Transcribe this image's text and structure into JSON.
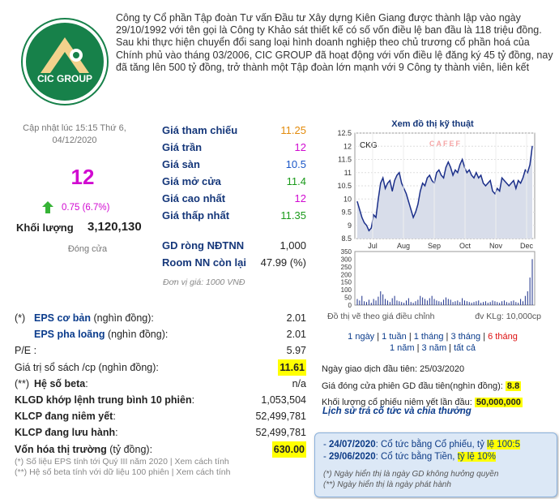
{
  "company": {
    "logo_text": "CIC GROUP",
    "description": "Công ty Cổ phần Tập đoàn Tư vấn Đầu tư Xây dựng Kiên Giang được thành lập vào ngày 29/10/1992 với tên gọi là Công ty Khảo sát thiết kế có số vốn điều lệ ban đầu là 118 triệu đồng. Sau khi thực hiện chuyển đổi sang loại hình doanh nghiệp theo chủ trương cổ phần hoá của Chính phủ vào tháng 03/2006, CIC GROUP đã hoạt động với vốn điều lệ đăng ký 45 tỷ đồng, nay đã tăng lên 500 tỷ đồng, trở thành một Tập đoàn lớn mạnh với 9 Công ty thành viên, liên kết"
  },
  "quote": {
    "updated": "Cập nhật lúc 15:15 Thứ 6, 04/12/2020",
    "price": "12",
    "change": "0.75 (6.7%)",
    "volume_label": "Khối lượng",
    "volume": "3,120,130",
    "status": "Đóng cửa"
  },
  "prices": [
    {
      "label": "Giá tham chiếu",
      "value": "11.25",
      "color": "#e38b0b"
    },
    {
      "label": "Giá trần",
      "value": "12",
      "color": "#d10ad1"
    },
    {
      "label": "Giá sàn",
      "value": "10.5",
      "color": "#1a56c7"
    },
    {
      "label": "Giá mở cửa",
      "value": "11.4",
      "color": "#1a9a1a"
    },
    {
      "label": "Giá cao nhất",
      "value": "12",
      "color": "#d10ad1"
    },
    {
      "label": "Giá thấp nhất",
      "value": "11.35",
      "color": "#1a9a1a"
    }
  ],
  "foreign": [
    {
      "label": "GD ròng NĐTNN",
      "value": "1,000"
    },
    {
      "label": "Room NN còn lại",
      "value": "47.99 (%)"
    }
  ],
  "unit_note": "Đơn vị giá: 1000 VNĐ",
  "fundamentals": [
    {
      "prefix": "(*)",
      "label": "EPS cơ bản",
      "suffix": " (nghìn đồng):",
      "value": "2.01",
      "link": true
    },
    {
      "prefix": "",
      "label": "EPS pha loãng",
      "suffix": " (nghìn đồng):",
      "value": "2.01",
      "link": true
    },
    {
      "prefix": "",
      "label": "P/E",
      "suffix": " :",
      "value": "5.97",
      "link": false
    },
    {
      "prefix": "",
      "label": "Giá trị sổ sách /cp",
      "suffix": " (nghìn đồng):",
      "value": "11.61",
      "link": false,
      "highlight": true
    },
    {
      "prefix": "(**)",
      "label": "Hệ số beta",
      "suffix": ":",
      "value": "n/a",
      "link": false,
      "bold": true
    },
    {
      "prefix": "",
      "label": "KLGD khớp lệnh trung bình 10 phiên",
      "suffix": ":",
      "value": "1,053,504",
      "link": false,
      "bold": true
    },
    {
      "prefix": "",
      "label": "KLCP đang niêm yết",
      "suffix": ":",
      "value": "52,499,781",
      "link": false,
      "bold": true
    },
    {
      "prefix": "",
      "label": "KLCP đang lưu hành",
      "suffix": ":",
      "value": "52,499,781",
      "link": false,
      "bold": true
    },
    {
      "prefix": "",
      "label": "Vốn hóa thị trường",
      "suffix": " (tỷ đồng):",
      "value": "630.00",
      "link": false,
      "bold": true,
      "highlight": true
    }
  ],
  "notes": {
    "n1": "(*) Số liệu EPS tính tới Quý III năm 2020 | Xem cách tính",
    "n2": "(**) Hệ số beta tính với dữ liệu 100 phiên | Xem cách tính"
  },
  "chart": {
    "title": "Xem đồ thị kỹ thuật",
    "ticker": "CKG",
    "watermark": "CAFEF",
    "footer_left": "Đồ thị vẽ theo giá điều chỉnh",
    "footer_right": "đv KLg: 10,000cp",
    "timeframes_row1": [
      "1 ngày",
      "1 tuần",
      "1 tháng",
      "3 tháng",
      "6 tháng"
    ],
    "timeframes_row2": [
      "1 năm",
      "3 năm",
      "tất cả"
    ],
    "active_timeframe": "6 tháng"
  },
  "chart_data": {
    "type": "line",
    "x_labels": [
      "Jul",
      "Aug",
      "Sep",
      "Oct",
      "Nov",
      "Dec"
    ],
    "y_ticks": [
      "8.5",
      "9",
      "9.5",
      "10",
      "10.5",
      "11",
      "11.5",
      "12",
      "12.5"
    ],
    "ylim": [
      8.5,
      12.5
    ],
    "values": [
      9.9,
      9.6,
      9.3,
      9.1,
      9.0,
      8.8,
      8.9,
      9.4,
      9.3,
      10.0,
      10.6,
      10.8,
      10.4,
      10.6,
      10.7,
      10.3,
      10.7,
      10.9,
      11.0,
      10.6,
      10.4,
      10.2,
      9.9,
      9.6,
      9.3,
      9.5,
      9.8,
      10.3,
      10.6,
      10.5,
      10.8,
      10.9,
      10.7,
      10.6,
      11.0,
      11.1,
      10.9,
      10.8,
      11.2,
      11.4,
      11.2,
      10.9,
      11.1,
      11.0,
      11.3,
      11.5,
      11.2,
      11.0,
      11.1,
      10.9,
      10.8,
      11.0,
      10.8,
      10.9,
      10.6,
      10.5,
      10.6,
      10.7,
      10.3,
      10.2,
      10.4,
      10.3,
      10.8,
      10.7,
      10.6,
      10.5,
      10.6,
      10.7,
      10.4,
      10.7,
      10.6,
      10.8,
      11.1,
      11.0,
      11.3,
      12.0
    ],
    "volume_y_ticks": [
      "0",
      "50",
      "100",
      "150",
      "200",
      "250",
      "300",
      "350"
    ],
    "volume_ylim": [
      0,
      350
    ],
    "volume": [
      40,
      30,
      60,
      25,
      20,
      35,
      15,
      40,
      30,
      55,
      90,
      70,
      40,
      30,
      20,
      45,
      60,
      30,
      25,
      20,
      15,
      30,
      45,
      20,
      15,
      25,
      35,
      60,
      50,
      40,
      30,
      45,
      60,
      40,
      30,
      25,
      20,
      35,
      50,
      40,
      35,
      20,
      25,
      30,
      20,
      45,
      30,
      25,
      20,
      15,
      20,
      25,
      30,
      15,
      20,
      25,
      15,
      20,
      30,
      25,
      20,
      15,
      25,
      30,
      20,
      15,
      25,
      30,
      20,
      15,
      40,
      25,
      60,
      90,
      180,
      300
    ]
  },
  "listing": {
    "first_trade": "Ngày giao dịch đầu tiên: 25/03/2020",
    "first_price_label": "Giá đóng cửa phiên GD đầu tiên(nghìn đồng): ",
    "first_price": "8.8",
    "listed_label": "Khối lượng cổ phiếu niêm yết lần đầu: ",
    "listed": "50,000,000",
    "history_link": "Lịch sử trả cổ tức và chia thưởng"
  },
  "dividends": {
    "items": [
      {
        "prefix": "- ",
        "date": "24/07/2020",
        "text": ": Cổ tức bằng Cổ phiếu, tỷ ",
        "hl": "lệ 100:5"
      },
      {
        "prefix": "- ",
        "date": "29/06/2020",
        "text": ": Cổ tức bằng Tiền, ",
        "hl": "tỷ lệ 10%"
      }
    ],
    "note1": "(*) Ngày hiển thị là ngày GD không hưởng quyền",
    "note2": "(**) Ngày hiển thị là ngày phát hành"
  }
}
